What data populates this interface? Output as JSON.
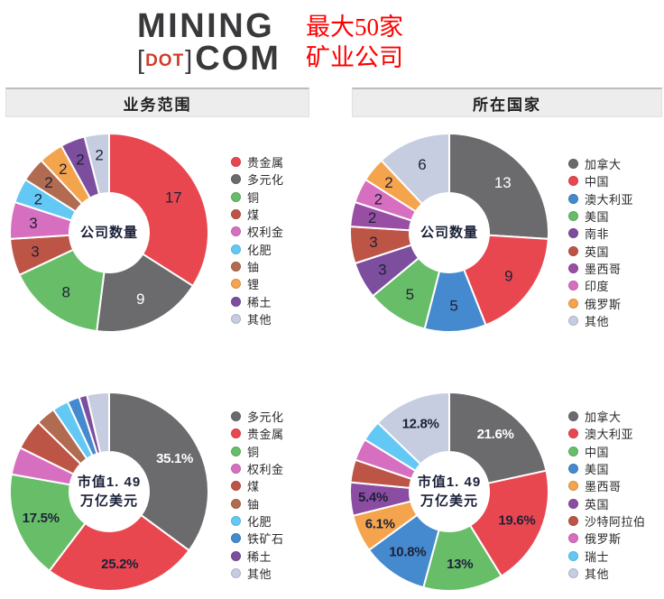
{
  "header": {
    "logo": {
      "line1": "MINING",
      "bracket_left": "[",
      "dot": "DOT",
      "bracket_right": "]",
      "com": "COM",
      "text_color": "#39393b",
      "dot_color": "#d23b27"
    },
    "title_line1": "最大50家",
    "title_line2": "矿业公司",
    "title_color": "#fe0000"
  },
  "sections": [
    {
      "title": "业务范围"
    },
    {
      "title": "所在国家"
    }
  ],
  "chart_data": [
    {
      "type": "pie",
      "title": "业务范围 - 公司数量",
      "center_label": [
        "公司数量"
      ],
      "label_style": "count",
      "legend_position": "right",
      "total": 50,
      "segments": [
        {
          "name": "贵金属",
          "value": 17,
          "label": "17",
          "color": "#e84750",
          "label_color": "#1d2137"
        },
        {
          "name": "多元化",
          "value": 9,
          "label": "9",
          "color": "#6b6b6e",
          "label_color": "#ffffff"
        },
        {
          "name": "铜",
          "value": 8,
          "label": "8",
          "color": "#68bd69",
          "label_color": "#1d2137"
        },
        {
          "name": "煤",
          "value": 3,
          "label": "3",
          "color": "#bd5547",
          "label_color": "#1d2137"
        },
        {
          "name": "权利金",
          "value": 3,
          "label": "3",
          "color": "#d76fc0",
          "label_color": "#1d2137"
        },
        {
          "name": "化肥",
          "value": 2,
          "label": "2",
          "color": "#63c9f4",
          "label_color": "#1d2137"
        },
        {
          "name": "铀",
          "value": 2,
          "label": "2",
          "color": "#b06b51",
          "label_color": "#1d2137"
        },
        {
          "name": "锂",
          "value": 2,
          "label": "2",
          "color": "#f4a44d",
          "label_color": "#1d2137"
        },
        {
          "name": "稀土",
          "value": 2,
          "label": "2",
          "color": "#7c4e9d",
          "label_color": "#1d2137"
        },
        {
          "name": "其他",
          "value": 2,
          "label": "2",
          "color": "#c6cde0",
          "label_color": "#1d2137"
        }
      ]
    },
    {
      "type": "pie",
      "title": "所在国家 - 公司数量",
      "center_label": [
        "公司数量"
      ],
      "label_style": "count",
      "legend_position": "right",
      "total": 50,
      "segments": [
        {
          "name": "加拿大",
          "value": 13,
          "label": "13",
          "color": "#6b6b6e",
          "label_color": "#ffffff"
        },
        {
          "name": "中国",
          "value": 9,
          "label": "9",
          "color": "#e84750",
          "label_color": "#1d2137"
        },
        {
          "name": "澳大利亚",
          "value": 5,
          "label": "5",
          "color": "#4589ce",
          "label_color": "#1d2137"
        },
        {
          "name": "美国",
          "value": 5,
          "label": "5",
          "color": "#68bd69",
          "label_color": "#1d2137"
        },
        {
          "name": "南非",
          "value": 3,
          "label": "3",
          "color": "#7c4e9d",
          "label_color": "#1d2137"
        },
        {
          "name": "英国",
          "value": 3,
          "label": "3",
          "color": "#bd5547",
          "label_color": "#1d2137"
        },
        {
          "name": "墨西哥",
          "value": 2,
          "label": "2",
          "color": "#984fa3",
          "label_color": "#1d2137"
        },
        {
          "name": "印度",
          "value": 2,
          "label": "2",
          "color": "#d76fc0",
          "label_color": "#1d2137"
        },
        {
          "name": "俄罗斯",
          "value": 2,
          "label": "2",
          "color": "#f4a44d",
          "label_color": "#1d2137"
        },
        {
          "name": "其他",
          "value": 6,
          "label": "6",
          "color": "#c6cde0",
          "label_color": "#1d2137"
        }
      ]
    },
    {
      "type": "pie",
      "title": "业务范围 - 市值1.49万亿美元",
      "center_label": [
        "市值1. 49",
        "万亿美元"
      ],
      "label_style": "percent",
      "legend_position": "right",
      "total": 100,
      "segments": [
        {
          "name": "多元化",
          "value": 35.1,
          "label": "35.1%",
          "color": "#6b6b6e",
          "label_color": "#ffffff"
        },
        {
          "name": "贵金属",
          "value": 25.2,
          "label": "25.2%",
          "color": "#e84750",
          "label_color": "#1d2137"
        },
        {
          "name": "铜",
          "value": 17.5,
          "label": "17.5%",
          "color": "#68bd69",
          "label_color": "#1d2137"
        },
        {
          "name": "权利金",
          "value": 4.5,
          "label": "",
          "color": "#d76fc0",
          "label_color": "#1d2137"
        },
        {
          "name": "煤",
          "value": 5.0,
          "label": "",
          "color": "#bd5547",
          "label_color": "#1d2137"
        },
        {
          "name": "铀",
          "value": 3.2,
          "label": "",
          "color": "#b06b51",
          "label_color": "#1d2137"
        },
        {
          "name": "化肥",
          "value": 2.6,
          "label": "",
          "color": "#63c9f4",
          "label_color": "#1d2137"
        },
        {
          "name": "铁矿石",
          "value": 2.0,
          "label": "",
          "color": "#4589ce",
          "label_color": "#1d2137"
        },
        {
          "name": "稀土",
          "value": 1.3,
          "label": "",
          "color": "#7c4e9d",
          "label_color": "#1d2137"
        },
        {
          "name": "其他",
          "value": 3.6,
          "label": "",
          "color": "#c6cde0",
          "label_color": "#1d2137"
        }
      ]
    },
    {
      "type": "pie",
      "title": "所在国家 - 市值1.49万亿美元",
      "center_label": [
        "市值1. 49",
        "万亿美元"
      ],
      "label_style": "percent",
      "legend_position": "right",
      "total": 100,
      "segments": [
        {
          "name": "加拿大",
          "value": 21.6,
          "label": "21.6%",
          "color": "#6b6b6e",
          "label_color": "#ffffff"
        },
        {
          "name": "澳大利亚",
          "value": 19.6,
          "label": "19.6%",
          "color": "#e84750",
          "label_color": "#1d2137"
        },
        {
          "name": "中国",
          "value": 13.0,
          "label": "13%",
          "color": "#68bd69",
          "label_color": "#1d2137"
        },
        {
          "name": "美国",
          "value": 10.8,
          "label": "10.8%",
          "color": "#4589ce",
          "label_color": "#1d2137"
        },
        {
          "name": "墨西哥",
          "value": 6.1,
          "label": "6.1%",
          "color": "#f4a44d",
          "label_color": "#1d2137"
        },
        {
          "name": "英国",
          "value": 5.4,
          "label": "5.4%",
          "color": "#8a4da1",
          "label_color": "#1d2137"
        },
        {
          "name": "沙特阿拉伯",
          "value": 3.7,
          "label": "",
          "color": "#bd5547",
          "label_color": "#1d2137"
        },
        {
          "name": "俄罗斯",
          "value": 3.6,
          "label": "",
          "color": "#d76fc0",
          "label_color": "#1d2137"
        },
        {
          "name": "瑞士",
          "value": 3.4,
          "label": "",
          "color": "#63c9f4",
          "label_color": "#1d2137"
        },
        {
          "name": "其他",
          "value": 12.8,
          "label": "12.8%",
          "color": "#c6cde0",
          "label_color": "#1d2137"
        }
      ]
    }
  ]
}
